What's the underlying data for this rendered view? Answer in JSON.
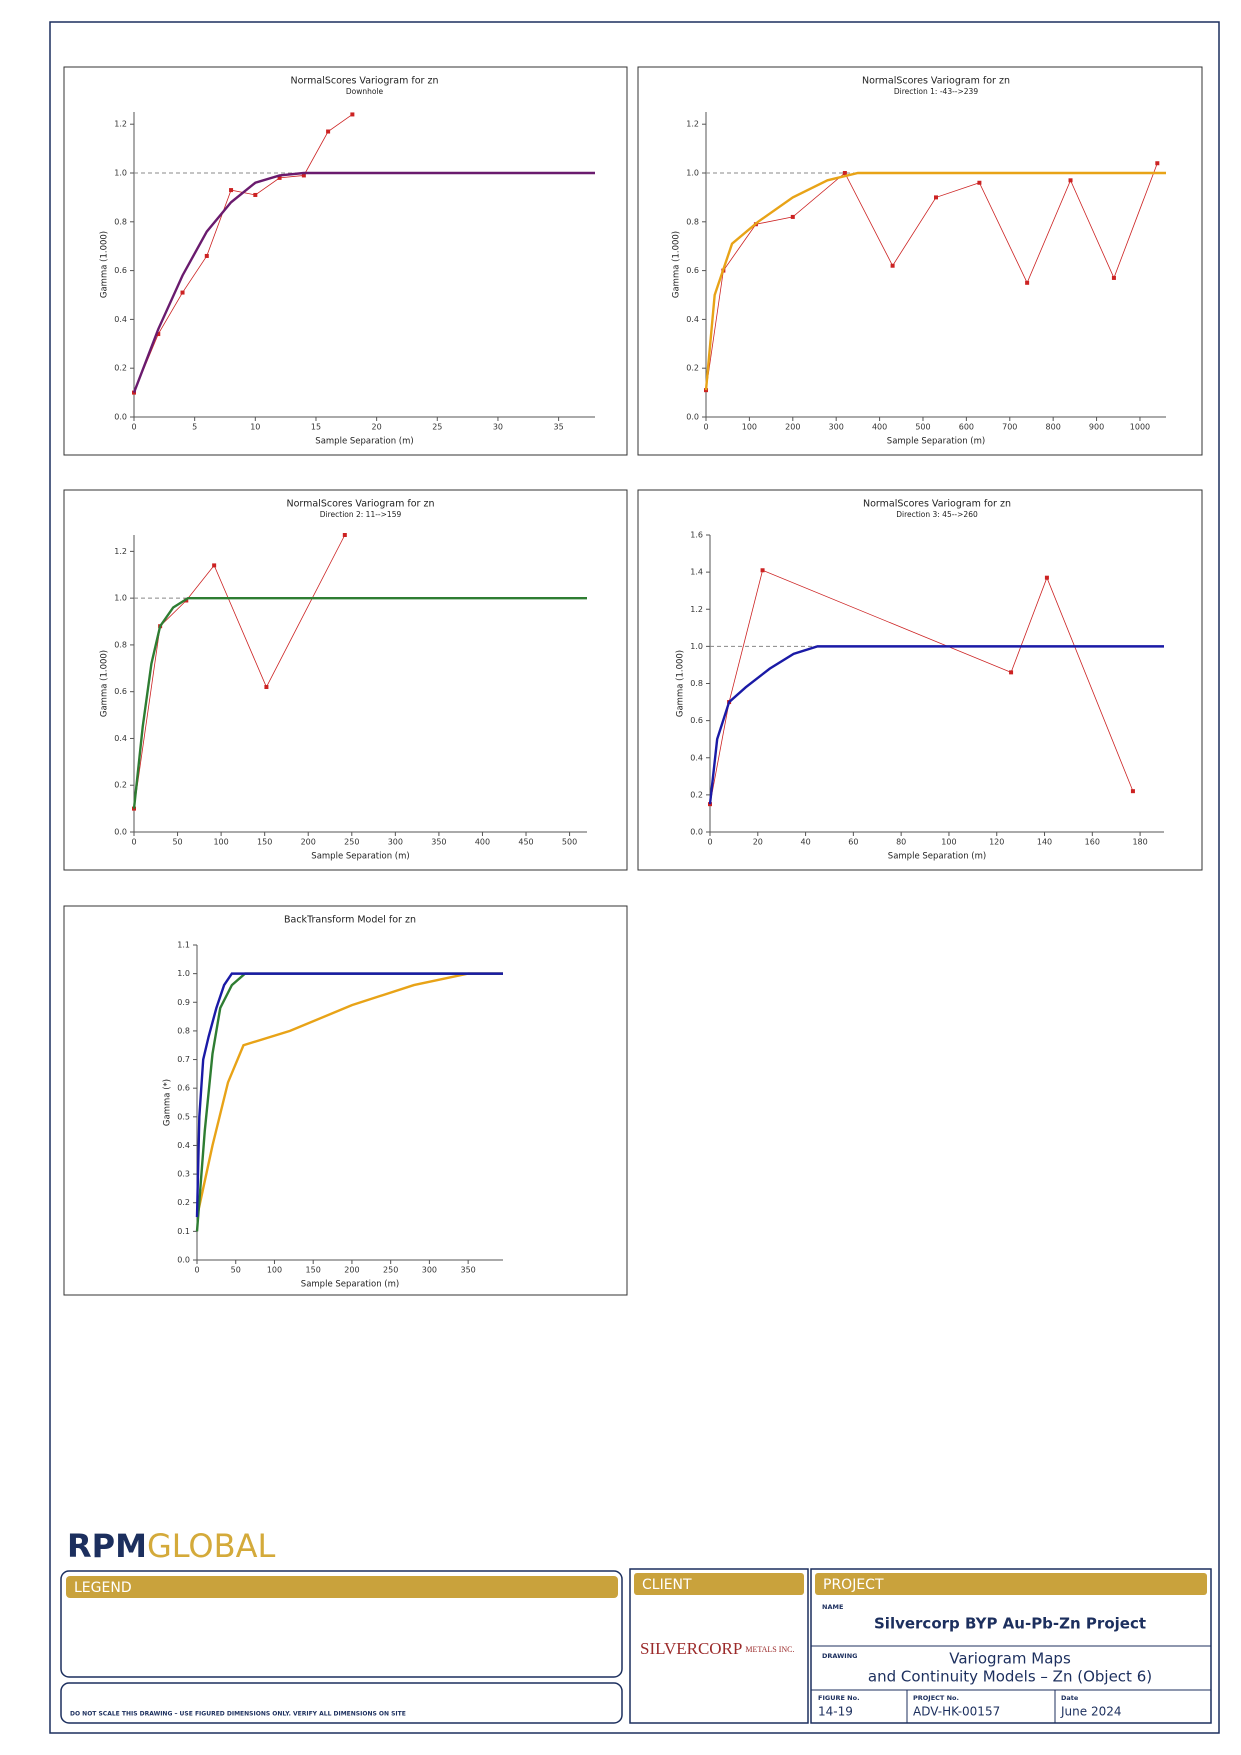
{
  "chart_data": [
    {
      "type": "line",
      "title": "NormalScores  Variogram for zn",
      "subtitle": "Downhole",
      "x_label": "Sample Separation (m)",
      "y_label": "Gamma (1.000)",
      "xlim": [
        0,
        38
      ],
      "xticks": [
        0,
        5,
        10,
        15,
        20,
        25,
        30,
        35
      ],
      "ylim": [
        0,
        1.25
      ],
      "yticks": [
        {
          "value": 0,
          "label": "0.0"
        },
        0.2,
        0.4,
        0.6,
        0.8,
        {
          "value": 1,
          "label": "1.0"
        },
        1.2
      ],
      "reference_y": 1,
      "series": [
        {
          "color": "#cc2222",
          "markers": true,
          "x": [
            0,
            2,
            4,
            6,
            8,
            10,
            12,
            14,
            16,
            18
          ],
          "values": [
            0.1,
            0.34,
            0.51,
            0.66,
            0.93,
            0.91,
            0.98,
            0.99,
            1.17,
            1.24
          ]
        },
        {
          "color": "#6a1b6e",
          "markers": false,
          "x": [
            0,
            2,
            4,
            6,
            8,
            10,
            12,
            14,
            38
          ],
          "values": [
            0.1,
            0.36,
            0.58,
            0.76,
            0.88,
            0.96,
            0.99,
            1.0,
            1.0
          ]
        }
      ]
    },
    {
      "type": "line",
      "title": "NormalScores  Variogram for zn",
      "subtitle": "Direction 1: -43-->239",
      "x_label": "Sample Separation (m)",
      "y_label": "Gamma (1.000)",
      "xlim": [
        0,
        1060
      ],
      "xticks": [
        0,
        100,
        200,
        300,
        400,
        500,
        600,
        700,
        800,
        900,
        1000
      ],
      "ylim": [
        0,
        1.25
      ],
      "yticks": [
        {
          "value": 0,
          "label": "0.0"
        },
        0.2,
        0.4,
        0.6,
        0.8,
        {
          "value": 1,
          "label": "1.0"
        },
        1.2
      ],
      "reference_y": 1,
      "series": [
        {
          "color": "#cc2222",
          "markers": true,
          "x": [
            0,
            40,
            115,
            200,
            320,
            430,
            530,
            630,
            740,
            840,
            940,
            1040
          ],
          "values": [
            0.11,
            0.6,
            0.79,
            0.82,
            1.0,
            0.62,
            0.9,
            0.96,
            0.55,
            0.97,
            0.57,
            1.04
          ]
        },
        {
          "color": "#e8a317",
          "markers": false,
          "x": [
            0,
            20,
            60,
            120,
            200,
            280,
            350,
            1060
          ],
          "values": [
            0.11,
            0.5,
            0.71,
            0.8,
            0.9,
            0.97,
            1.0,
            1.0
          ]
        }
      ]
    },
    {
      "type": "line",
      "title": "NormalScores  Variogram for zn",
      "subtitle": "Direction 2: 11-->159",
      "x_label": "Sample Separation (m)",
      "y_label": "Gamma (1.000)",
      "xlim": [
        0,
        520
      ],
      "xticks": [
        0,
        50,
        100,
        150,
        200,
        250,
        300,
        350,
        400,
        450,
        500
      ],
      "ylim": [
        0,
        1.27
      ],
      "yticks": [
        {
          "value": 0,
          "label": "0.0"
        },
        0.2,
        0.4,
        0.6,
        0.8,
        {
          "value": 1,
          "label": "1.0"
        },
        1.2
      ],
      "reference_y": 1,
      "series": [
        {
          "color": "#cc2222",
          "markers": true,
          "x": [
            0,
            30,
            60,
            92,
            152,
            242
          ],
          "values": [
            0.1,
            0.88,
            0.99,
            1.14,
            0.62,
            1.27
          ]
        },
        {
          "color": "#2e7d32",
          "markers": false,
          "x": [
            0,
            10,
            20,
            30,
            45,
            62,
            520
          ],
          "values": [
            0.1,
            0.45,
            0.72,
            0.88,
            0.96,
            1.0,
            1.0
          ]
        }
      ]
    },
    {
      "type": "line",
      "title": "NormalScores  Variogram for zn",
      "subtitle": "Direction 3: 45-->260",
      "x_label": "Sample Separation (m)",
      "y_label": "Gamma (1.000)",
      "xlim": [
        0,
        190
      ],
      "xticks": [
        0,
        20,
        40,
        60,
        80,
        100,
        120,
        140,
        160,
        180
      ],
      "ylim": [
        0,
        1.6
      ],
      "yticks": [
        {
          "value": 0,
          "label": "0.0"
        },
        0.2,
        0.4,
        0.6,
        0.8,
        {
          "value": 1,
          "label": "1.0"
        },
        1.2,
        1.4,
        1.6
      ],
      "reference_y": 1,
      "series": [
        {
          "color": "#cc2222",
          "markers": true,
          "x": [
            0,
            8,
            22,
            126,
            141,
            177
          ],
          "values": [
            0.15,
            0.7,
            1.41,
            0.86,
            1.37,
            0.22
          ]
        },
        {
          "color": "#1a1aa6",
          "markers": false,
          "x": [
            0,
            3,
            8,
            15,
            25,
            35,
            45,
            190
          ],
          "values": [
            0.15,
            0.5,
            0.7,
            0.78,
            0.88,
            0.96,
            1.0,
            1.0
          ]
        }
      ]
    },
    {
      "type": "line",
      "title": "BackTransform Model for zn",
      "x_label": "Sample Separation (m)",
      "y_label": "Gamma (*)",
      "xlim": [
        0,
        395
      ],
      "xticks": [
        0,
        50,
        100,
        150,
        200,
        250,
        300,
        350
      ],
      "ylim": [
        0,
        1.1
      ],
      "yticks": [
        {
          "value": 0,
          "label": "0.0"
        },
        0.1,
        0.2,
        0.3,
        0.4,
        0.5,
        0.6,
        0.7,
        0.8,
        0.9,
        {
          "value": 1,
          "label": "1.0"
        },
        1.1
      ],
      "series": [
        {
          "color": "#e8a317",
          "markers": false,
          "x": [
            0,
            20,
            40,
            60,
            120,
            200,
            280,
            350,
            395
          ],
          "values": [
            0.15,
            0.4,
            0.62,
            0.75,
            0.8,
            0.89,
            0.96,
            1.0,
            1.0
          ]
        },
        {
          "color": "#2e7d32",
          "markers": false,
          "x": [
            0,
            10,
            20,
            30,
            45,
            62,
            395
          ],
          "values": [
            0.1,
            0.45,
            0.72,
            0.88,
            0.96,
            1.0,
            1.0
          ]
        },
        {
          "color": "#1a1aa6",
          "markers": false,
          "x": [
            0,
            3,
            8,
            15,
            25,
            35,
            45,
            395
          ],
          "values": [
            0.15,
            0.5,
            0.7,
            0.78,
            0.88,
            0.96,
            1.0,
            1.0
          ]
        }
      ]
    }
  ],
  "logo": {
    "primary": "RPM",
    "secondary": "GLOBAL"
  },
  "legend": {
    "title": "LEGEND"
  },
  "note": "DO NOT SCALE THIS DRAWING – USE FIGURED DIMENSIONS ONLY. VERIFY ALL DIMENSIONS ON SITE",
  "client": {
    "title": "CLIENT",
    "logo_main": "SILVERCORP",
    "logo_sub": "METALS INC."
  },
  "project": {
    "title": "PROJECT",
    "name_label": "NAME",
    "name": "Silvercorp BYP Au-Pb-Zn Project",
    "drawing_label": "DRAWING",
    "drawing": [
      "Variogram Maps",
      "and Continuity Models – Zn (Object 6)"
    ],
    "figure_label": "FIGURE No.",
    "figure": "14-19",
    "project_no_label": "PROJECT No.",
    "project_no": "ADV-HK-00157",
    "date_label": "Date",
    "date": "June 2024"
  }
}
